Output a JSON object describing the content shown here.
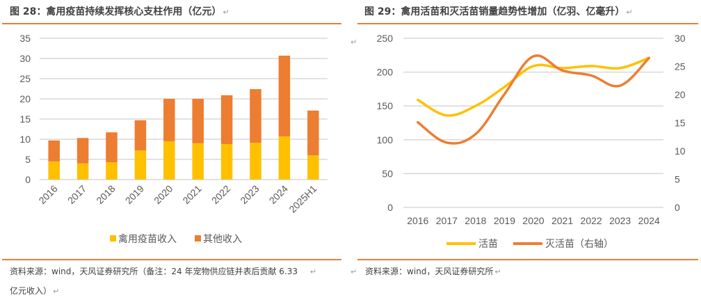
{
  "left_figure": {
    "title": "图 28：禽用疫苗持续发挥核心支柱作用（亿元）",
    "return_mark": "↵",
    "source_line1": "资料来源：wind，天风证券研究所（备注：24 年宠物供应链并表后贡献 6.33",
    "source_line2": "亿元收入）"
  },
  "right_figure": {
    "title": "图 29：禽用活苗和灭活苗销量趋势性增加（亿羽、亿毫升）",
    "return_mark": "↵",
    "source": "资料来源：wind，天风证券研究所"
  },
  "colors": {
    "yellow": "#ffc000",
    "orange": "#ed7d31",
    "grid": "#d9d9d9",
    "rule": "#ed7d31"
  },
  "chart_data": [
    {
      "type": "bar",
      "stacked": true,
      "title": "禽用疫苗持续发挥核心支柱作用（亿元）",
      "categories": [
        "2016",
        "2017",
        "2018",
        "2019",
        "2020",
        "2021",
        "2022",
        "2023",
        "2024",
        "2025H1"
      ],
      "series": [
        {
          "name": "禽用疫苗收入",
          "color": "#ffc000",
          "values": [
            4.5,
            4.0,
            4.3,
            7.2,
            9.5,
            9.0,
            8.8,
            9.1,
            10.7,
            6.0
          ]
        },
        {
          "name": "其他收入",
          "color": "#ed7d31",
          "values": [
            5.2,
            6.3,
            7.4,
            7.5,
            10.5,
            11.0,
            12.1,
            13.3,
            20.0,
            11.1
          ]
        }
      ],
      "yticks": [
        "0",
        "5",
        "10",
        "15",
        "20",
        "25",
        "30",
        "35"
      ],
      "ylim": [
        0,
        35
      ],
      "grid": true,
      "legend": "bottom",
      "xlabel": "",
      "ylabel": ""
    },
    {
      "type": "line",
      "title": "禽用活苗和灭活苗销量趋势性增加（亿羽、亿毫升）",
      "categories": [
        "2016",
        "2017",
        "2018",
        "2019",
        "2020",
        "2021",
        "2022",
        "2023",
        "2024"
      ],
      "series": [
        {
          "name": "活苗",
          "axis": "left",
          "color": "#ffc000",
          "values": [
            159,
            136,
            150,
            178,
            209,
            206,
            209,
            206,
            221
          ]
        },
        {
          "name": "灭活苗（右轴）",
          "axis": "right",
          "color": "#ed7d31",
          "values": [
            15.1,
            11.5,
            13.0,
            20.1,
            26.8,
            24.3,
            23.4,
            21.6,
            26.5
          ]
        }
      ],
      "yticks_left": [
        "0",
        "50",
        "100",
        "150",
        "200",
        "250"
      ],
      "yticks_right": [
        "0",
        "5",
        "10",
        "15",
        "20",
        "25",
        "30"
      ],
      "ylim_left": [
        0,
        250
      ],
      "ylim_right": [
        0,
        30
      ],
      "grid": true,
      "legend": "bottom",
      "smooth": true
    }
  ]
}
